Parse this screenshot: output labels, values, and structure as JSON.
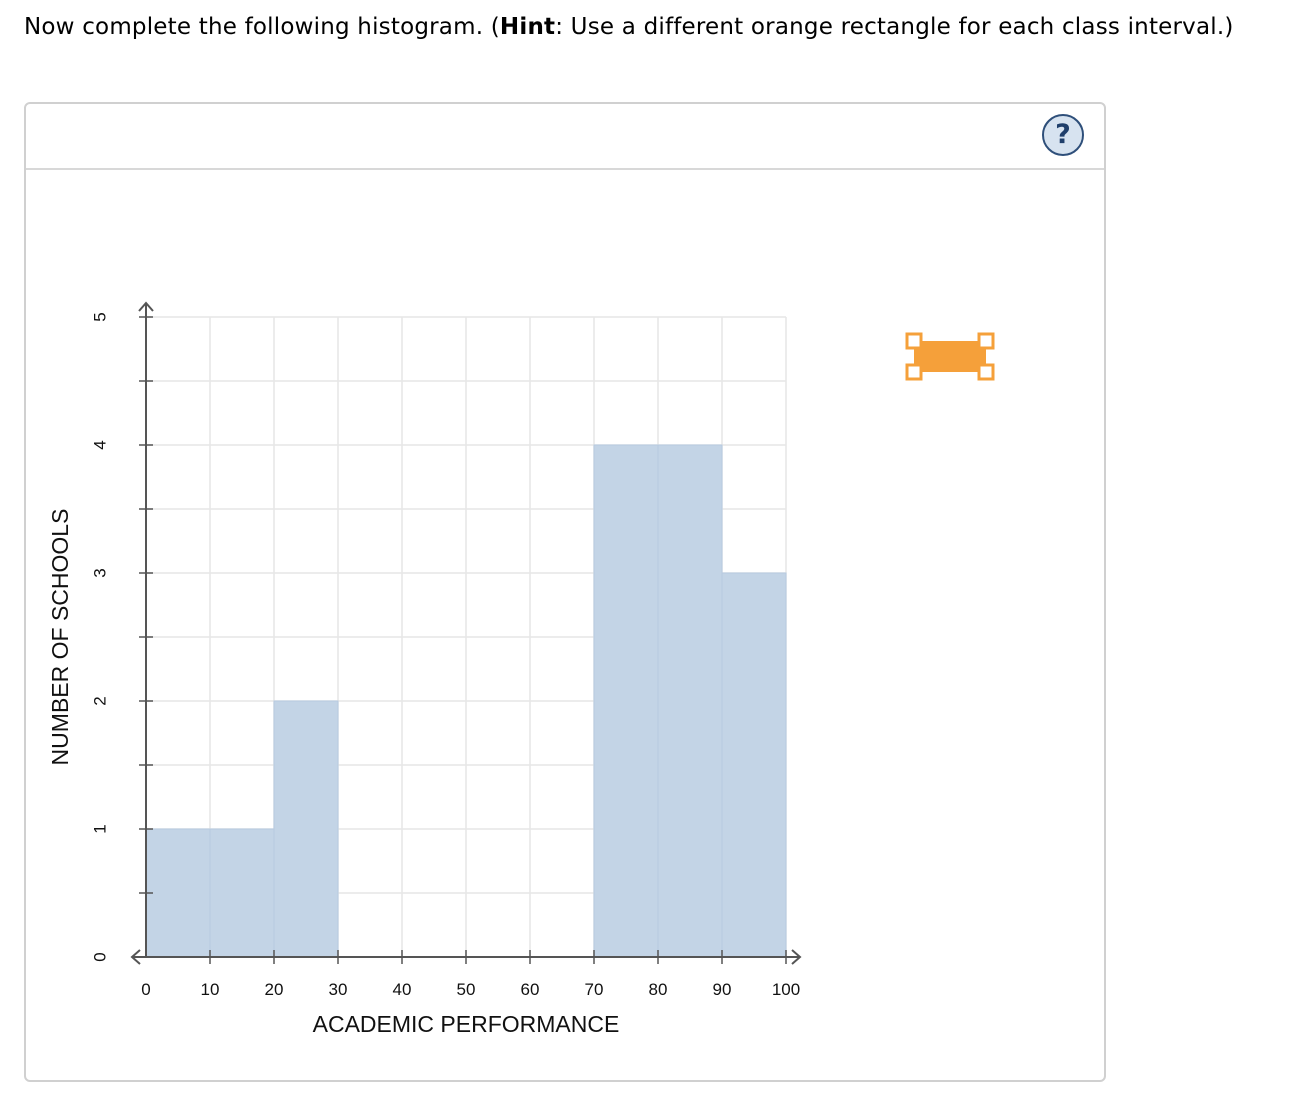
{
  "instruction": {
    "prefix": "Now complete the following histogram. (",
    "hint_label": "Hint",
    "suffix": ": Use a different orange rectangle for each class interval.)"
  },
  "help_button": {
    "label": "?"
  },
  "tool": {
    "icon": "orange-rectangle-tool-icon",
    "color": "#f5a03a"
  },
  "chart_data": {
    "type": "bar",
    "title": "",
    "xlabel": "ACADEMIC PERFORMANCE",
    "ylabel": "NUMBER OF SCHOOLS",
    "xlim": [
      0,
      100
    ],
    "ylim": [
      0,
      5
    ],
    "x_ticks": [
      0,
      10,
      20,
      30,
      40,
      50,
      60,
      70,
      80,
      90,
      100
    ],
    "y_ticks": [
      0,
      1,
      2,
      3,
      4,
      5
    ],
    "grid": true,
    "bar_color": "#c3d4e6",
    "bars": [
      {
        "x0": 0,
        "x1": 10,
        "value": 1
      },
      {
        "x0": 10,
        "x1": 20,
        "value": 1
      },
      {
        "x0": 20,
        "x1": 30,
        "value": 2
      },
      {
        "x0": 70,
        "x1": 80,
        "value": 4
      },
      {
        "x0": 80,
        "x1": 90,
        "value": 4
      },
      {
        "x0": 90,
        "x1": 100,
        "value": 3
      }
    ]
  }
}
